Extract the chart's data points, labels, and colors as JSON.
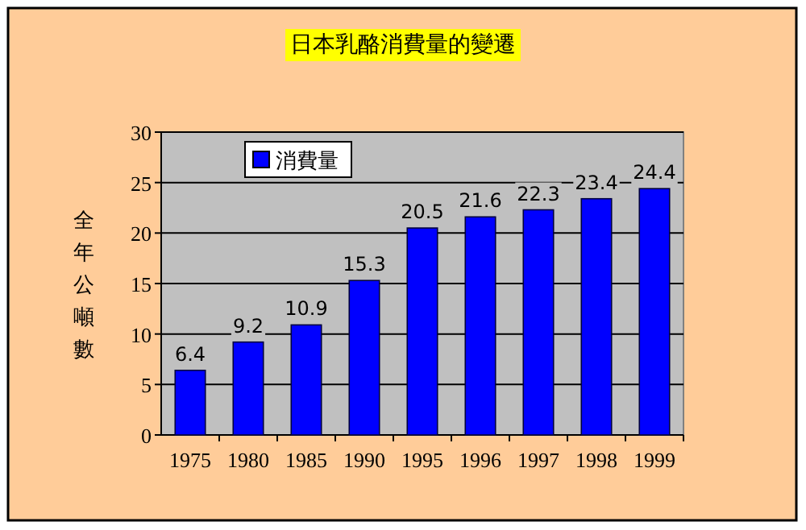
{
  "chart_data": {
    "type": "bar",
    "title": "日本乳酪消費量的變遷",
    "ylabel": "全年公噸數",
    "categories": [
      "1975",
      "1980",
      "1985",
      "1990",
      "1995",
      "1996",
      "1997",
      "1998",
      "1999"
    ],
    "series": [
      {
        "name": "消費量",
        "color": "#0000ff",
        "values": [
          6.4,
          9.2,
          10.9,
          15.3,
          20.5,
          21.6,
          22.3,
          23.4,
          24.4
        ]
      }
    ],
    "ylim": [
      0,
      30
    ],
    "yticks": [
      0,
      5,
      10,
      15,
      20,
      25,
      30
    ],
    "grid": "y",
    "legend": "top left",
    "data_labels": true
  }
}
